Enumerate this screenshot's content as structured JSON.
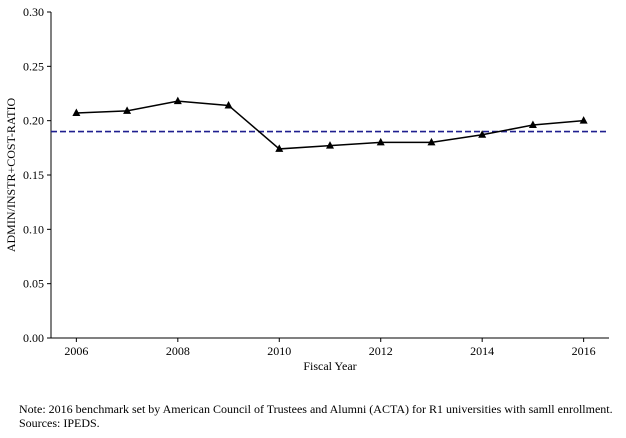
{
  "chart_data": {
    "type": "line",
    "xlabel": "Fiscal Year",
    "ylabel": "ADMIN/INSTR+COST-RATIO",
    "xlim": [
      2005.5,
      2016.5
    ],
    "ylim": [
      0.0,
      0.3
    ],
    "xticks": [
      2006,
      2008,
      2010,
      2012,
      2014,
      2016
    ],
    "yticks": [
      "0.00",
      "0.05",
      "0.10",
      "0.15",
      "0.20",
      "0.25",
      "0.30"
    ],
    "grid": false,
    "series": [
      {
        "x": [
          2006,
          2007,
          2008,
          2009,
          2010,
          2011,
          2012,
          2013,
          2014,
          2015,
          2016
        ],
        "y": [
          0.207,
          0.209,
          0.218,
          0.214,
          0.174,
          0.177,
          0.18,
          0.18,
          0.187,
          0.196,
          0.2
        ],
        "color": "#000000",
        "marker": "triangle"
      }
    ],
    "reference_line": {
      "y": 0.19,
      "style": "dashed",
      "color": "#1f1f8f"
    }
  },
  "note": {
    "line1": "Note: 2016 benchmark set by American Council of Trustees and Alumni (ACTA) for R1 universities with samll enrollment.",
    "line2": "Sources: IPEDS."
  }
}
